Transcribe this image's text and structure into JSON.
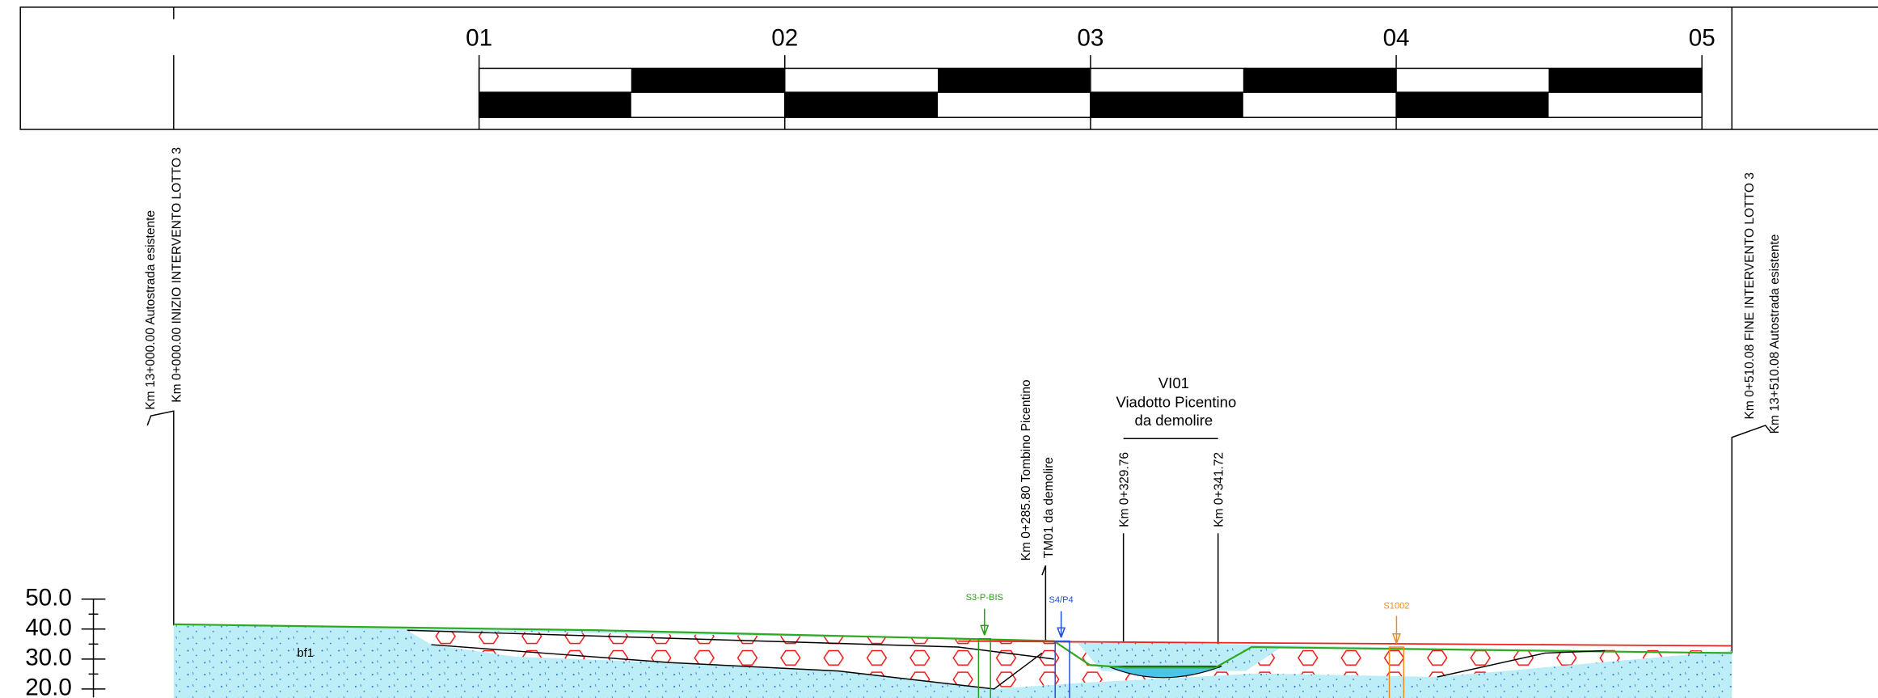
{
  "scale": {
    "labels": [
      "01",
      "02",
      "03",
      "04",
      "05"
    ]
  },
  "annotations": {
    "start_existing": "Km 13+000.00 Autostrada esistente",
    "start_lot": "Km 0+000.00 INIZIO INTERVENTO LOTTO 3",
    "end_lot": "Km 0+510.08 FINE INTERVENTO LOTTO 3",
    "end_existing": "Km 13+510.08 Autostrada esistente",
    "culvert": "Km 0+285.80 Tombino Picentino",
    "culvert_note": "TM01 da demolire"
  },
  "viaduct": {
    "code": "VI01",
    "name": "Viadotto Picentino",
    "note": "da demolire",
    "start": "Km 0+329.76",
    "end": "Km 0+341.72"
  },
  "elevation_labels": [
    "50.0",
    "40.0",
    "30.0",
    "20.0"
  ],
  "profile": {
    "layer_label": "bf1",
    "boreholes": [
      "S3-P-BIS",
      "S4/P4",
      "S1002"
    ]
  }
}
